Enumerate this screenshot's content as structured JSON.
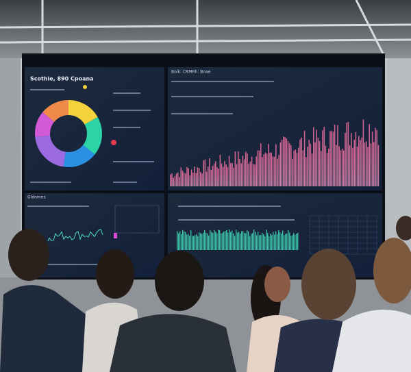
{
  "screen": {
    "title": "Scothie, 890 Cpoana",
    "top_right_title": "Bolk: CRMRh: Boae",
    "lower_left_title": "Gldnmes"
  }
}
